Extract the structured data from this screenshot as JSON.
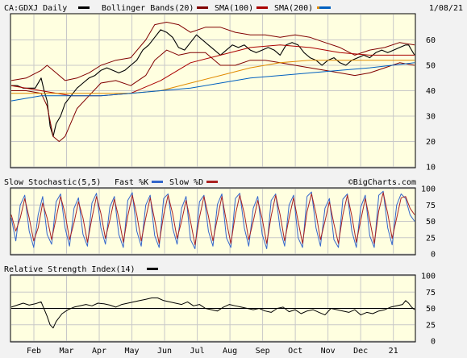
{
  "header": {
    "symbol": "CA:GDXJ Daily",
    "date": "1/08/21",
    "legend": [
      {
        "label": "Bollinger Bands(20)",
        "color": "#800000"
      },
      {
        "label": "SMA(100)",
        "color": "#aa0000"
      },
      {
        "label": "SMA(200)",
        "color": "#e08a00"
      },
      {
        "label": "",
        "color": "#0060c0"
      }
    ],
    "symbol_swatch_color": "#000000"
  },
  "stoch_header": {
    "title": "Slow Stochastic(5,5)",
    "fast_label": "Fast %K",
    "fast_color": "#3366cc",
    "slow_label": "Slow %D",
    "slow_color": "#aa2222",
    "credit": "©BigCharts.com"
  },
  "rsi_header": {
    "title": "Relative Strength Index(14)",
    "color": "#000000"
  },
  "chart_data": [
    {
      "type": "line",
      "panel": "price",
      "ylim": [
        10,
        70
      ],
      "yticks": [
        10,
        20,
        30,
        40,
        50,
        60
      ],
      "x_labels": [
        "Feb",
        "Mar",
        "Apr",
        "May",
        "Jun",
        "Jul",
        "Aug",
        "Sep",
        "Oct",
        "Nov",
        "Dec",
        "21"
      ],
      "series": [
        {
          "name": "Price",
          "color": "#000000",
          "x": [
            0,
            4,
            8,
            12,
            16,
            20,
            22,
            24,
            26,
            28,
            30,
            33,
            36,
            40,
            44,
            48,
            52,
            56,
            60,
            64,
            68,
            72,
            76,
            80,
            84,
            88,
            92,
            96,
            100,
            104,
            108,
            112,
            116,
            120,
            124,
            128,
            132,
            136,
            140,
            144,
            148,
            152,
            156,
            160,
            164,
            168,
            172,
            176,
            180,
            184,
            188,
            192,
            196,
            200,
            204,
            208,
            212,
            216,
            220,
            224,
            228,
            232,
            236,
            240,
            244,
            248,
            252,
            256,
            260,
            264,
            266,
            268,
            270
          ],
          "values": [
            42,
            42,
            41,
            41,
            41,
            45,
            40,
            36,
            26,
            22,
            27,
            30,
            35,
            38,
            41,
            43,
            45,
            46,
            48,
            49,
            48,
            47,
            48,
            50,
            52,
            56,
            58,
            61,
            64,
            63,
            61,
            57,
            56,
            59,
            62,
            60,
            58,
            56,
            54,
            56,
            58,
            57,
            58,
            56,
            55,
            56,
            57,
            56,
            54,
            58,
            59,
            58,
            55,
            53,
            52,
            50,
            52,
            53,
            51,
            50,
            52,
            53,
            54,
            53,
            55,
            56,
            55,
            56,
            57,
            58,
            58,
            56,
            54
          ]
        },
        {
          "name": "Upper Bollinger",
          "color": "#800000",
          "x": [
            0,
            10,
            20,
            24,
            30,
            36,
            44,
            52,
            60,
            70,
            80,
            90,
            96,
            104,
            112,
            120,
            130,
            140,
            150,
            160,
            170,
            180,
            190,
            200,
            210,
            220,
            230,
            240,
            250,
            260,
            270
          ],
          "values": [
            44,
            45,
            48,
            50,
            47,
            44,
            45,
            47,
            50,
            52,
            53,
            60,
            66,
            67,
            66,
            63,
            65,
            65,
            63,
            62,
            62,
            61,
            62,
            61,
            59,
            57,
            54,
            56,
            57,
            59,
            58
          ]
        },
        {
          "name": "Lower Bollinger",
          "color": "#800000",
          "x": [
            0,
            10,
            20,
            24,
            28,
            32,
            36,
            44,
            52,
            60,
            70,
            80,
            90,
            96,
            104,
            112,
            120,
            130,
            140,
            150,
            160,
            170,
            180,
            190,
            200,
            210,
            220,
            230,
            240,
            250,
            260,
            270
          ],
          "values": [
            40,
            40,
            39,
            34,
            22,
            20,
            22,
            33,
            38,
            43,
            44,
            42,
            46,
            52,
            56,
            54,
            55,
            55,
            50,
            50,
            52,
            52,
            51,
            50,
            49,
            48,
            47,
            46,
            47,
            49,
            51,
            50
          ]
        },
        {
          "name": "SMA(100)",
          "color": "#aa0000",
          "x": [
            0,
            20,
            40,
            60,
            80,
            100,
            120,
            140,
            160,
            180,
            200,
            220,
            240,
            270
          ],
          "values": [
            42,
            40,
            38,
            38,
            39,
            44,
            51,
            54,
            57,
            58,
            57,
            55,
            54,
            54
          ]
        },
        {
          "name": "SMA(200)",
          "color": "#e08a00",
          "x": [
            0,
            20,
            40,
            60,
            80,
            100,
            120,
            140,
            160,
            180,
            200,
            220,
            240,
            270
          ],
          "values": [
            39,
            39,
            39,
            39,
            39,
            40,
            43,
            46,
            49,
            51,
            52,
            52,
            52,
            52
          ]
        },
        {
          "name": "",
          "color": "#0060c0",
          "x": [
            0,
            20,
            40,
            60,
            80,
            100,
            120,
            140,
            160,
            180,
            200,
            220,
            240,
            270
          ],
          "values": [
            36,
            38,
            38,
            38,
            39,
            40,
            41,
            43,
            45,
            46,
            47,
            48,
            49,
            51
          ]
        }
      ]
    },
    {
      "type": "line",
      "panel": "stochastic",
      "ylim": [
        0,
        100
      ],
      "yticks": [
        0,
        25,
        50,
        75,
        100
      ],
      "series": [
        {
          "name": "Fast %K",
          "color": "#3366cc",
          "x": [
            0,
            3,
            6,
            9,
            12,
            15,
            18,
            21,
            24,
            27,
            30,
            33,
            36,
            39,
            42,
            45,
            48,
            51,
            54,
            57,
            60,
            63,
            66,
            69,
            72,
            75,
            78,
            81,
            84,
            87,
            90,
            93,
            96,
            99,
            102,
            105,
            108,
            111,
            114,
            117,
            120,
            123,
            126,
            129,
            132,
            135,
            138,
            141,
            144,
            147,
            150,
            153,
            156,
            159,
            162,
            165,
            168,
            171,
            174,
            177,
            180,
            183,
            186,
            189,
            192,
            195,
            198,
            201,
            204,
            207,
            210,
            213,
            216,
            219,
            222,
            225,
            228,
            231,
            234,
            237,
            240,
            243,
            246,
            249,
            252,
            255,
            258,
            261,
            264,
            267,
            270
          ],
          "values": [
            55,
            20,
            75,
            90,
            35,
            10,
            60,
            88,
            30,
            15,
            80,
            92,
            40,
            12,
            70,
            86,
            30,
            12,
            78,
            93,
            40,
            15,
            72,
            88,
            30,
            10,
            82,
            94,
            35,
            12,
            75,
            90,
            28,
            10,
            85,
            92,
            40,
            15,
            70,
            88,
            22,
            8,
            80,
            90,
            35,
            12,
            76,
            92,
            25,
            10,
            85,
            93,
            40,
            12,
            70,
            88,
            30,
            8,
            82,
            92,
            38,
            12,
            75,
            90,
            25,
            10,
            88,
            95,
            40,
            12,
            70,
            85,
            22,
            10,
            84,
            92,
            35,
            10,
            72,
            90,
            28,
            10,
            90,
            96,
            40,
            14,
            75,
            92,
            85,
            60,
            50
          ]
        },
        {
          "name": "Slow %D",
          "color": "#aa2222",
          "x": [
            0,
            3,
            6,
            9,
            12,
            15,
            18,
            21,
            24,
            27,
            30,
            33,
            36,
            39,
            42,
            45,
            48,
            51,
            54,
            57,
            60,
            63,
            66,
            69,
            72,
            75,
            78,
            81,
            84,
            87,
            90,
            93,
            96,
            99,
            102,
            105,
            108,
            111,
            114,
            117,
            120,
            123,
            126,
            129,
            132,
            135,
            138,
            141,
            144,
            147,
            150,
            153,
            156,
            159,
            162,
            165,
            168,
            171,
            174,
            177,
            180,
            183,
            186,
            189,
            192,
            195,
            198,
            201,
            204,
            207,
            210,
            213,
            216,
            219,
            222,
            225,
            228,
            231,
            234,
            237,
            240,
            243,
            246,
            249,
            252,
            255,
            258,
            261,
            264,
            267,
            270
          ],
          "values": [
            60,
            35,
            55,
            85,
            55,
            20,
            40,
            78,
            55,
            22,
            55,
            88,
            62,
            22,
            48,
            80,
            55,
            18,
            55,
            88,
            62,
            24,
            52,
            84,
            55,
            18,
            58,
            90,
            60,
            20,
            55,
            86,
            52,
            16,
            60,
            90,
            62,
            24,
            50,
            82,
            50,
            14,
            56,
            88,
            58,
            20,
            55,
            88,
            50,
            16,
            60,
            90,
            62,
            22,
            50,
            82,
            54,
            16,
            58,
            90,
            60,
            20,
            55,
            86,
            50,
            16,
            65,
            92,
            62,
            22,
            50,
            80,
            46,
            16,
            60,
            90,
            58,
            18,
            52,
            85,
            52,
            16,
            66,
            94,
            62,
            24,
            55,
            86,
            88,
            70,
            60
          ]
        }
      ]
    },
    {
      "type": "line",
      "panel": "rsi",
      "ylim": [
        0,
        100
      ],
      "yticks": [
        0,
        25,
        50,
        75,
        100
      ],
      "series": [
        {
          "name": "RSI(14)",
          "color": "#000000",
          "x": [
            0,
            4,
            8,
            12,
            16,
            20,
            24,
            26,
            28,
            30,
            34,
            38,
            42,
            46,
            50,
            54,
            58,
            62,
            66,
            70,
            74,
            78,
            82,
            86,
            90,
            94,
            98,
            102,
            106,
            110,
            114,
            118,
            122,
            126,
            130,
            134,
            138,
            142,
            146,
            150,
            154,
            158,
            162,
            166,
            170,
            174,
            178,
            182,
            186,
            190,
            194,
            198,
            202,
            206,
            210,
            214,
            218,
            222,
            226,
            230,
            234,
            238,
            242,
            246,
            250,
            254,
            258,
            262,
            264,
            266,
            268,
            270
          ],
          "values": [
            52,
            55,
            58,
            55,
            57,
            60,
            38,
            25,
            20,
            30,
            42,
            48,
            52,
            54,
            56,
            54,
            58,
            57,
            55,
            52,
            56,
            58,
            60,
            62,
            64,
            66,
            66,
            62,
            60,
            58,
            56,
            60,
            54,
            56,
            50,
            48,
            46,
            52,
            56,
            54,
            52,
            50,
            48,
            50,
            46,
            44,
            50,
            52,
            45,
            48,
            42,
            46,
            48,
            44,
            40,
            50,
            48,
            46,
            44,
            48,
            40,
            44,
            42,
            46,
            48,
            52,
            54,
            56,
            62,
            58,
            52,
            48
          ]
        }
      ]
    }
  ]
}
